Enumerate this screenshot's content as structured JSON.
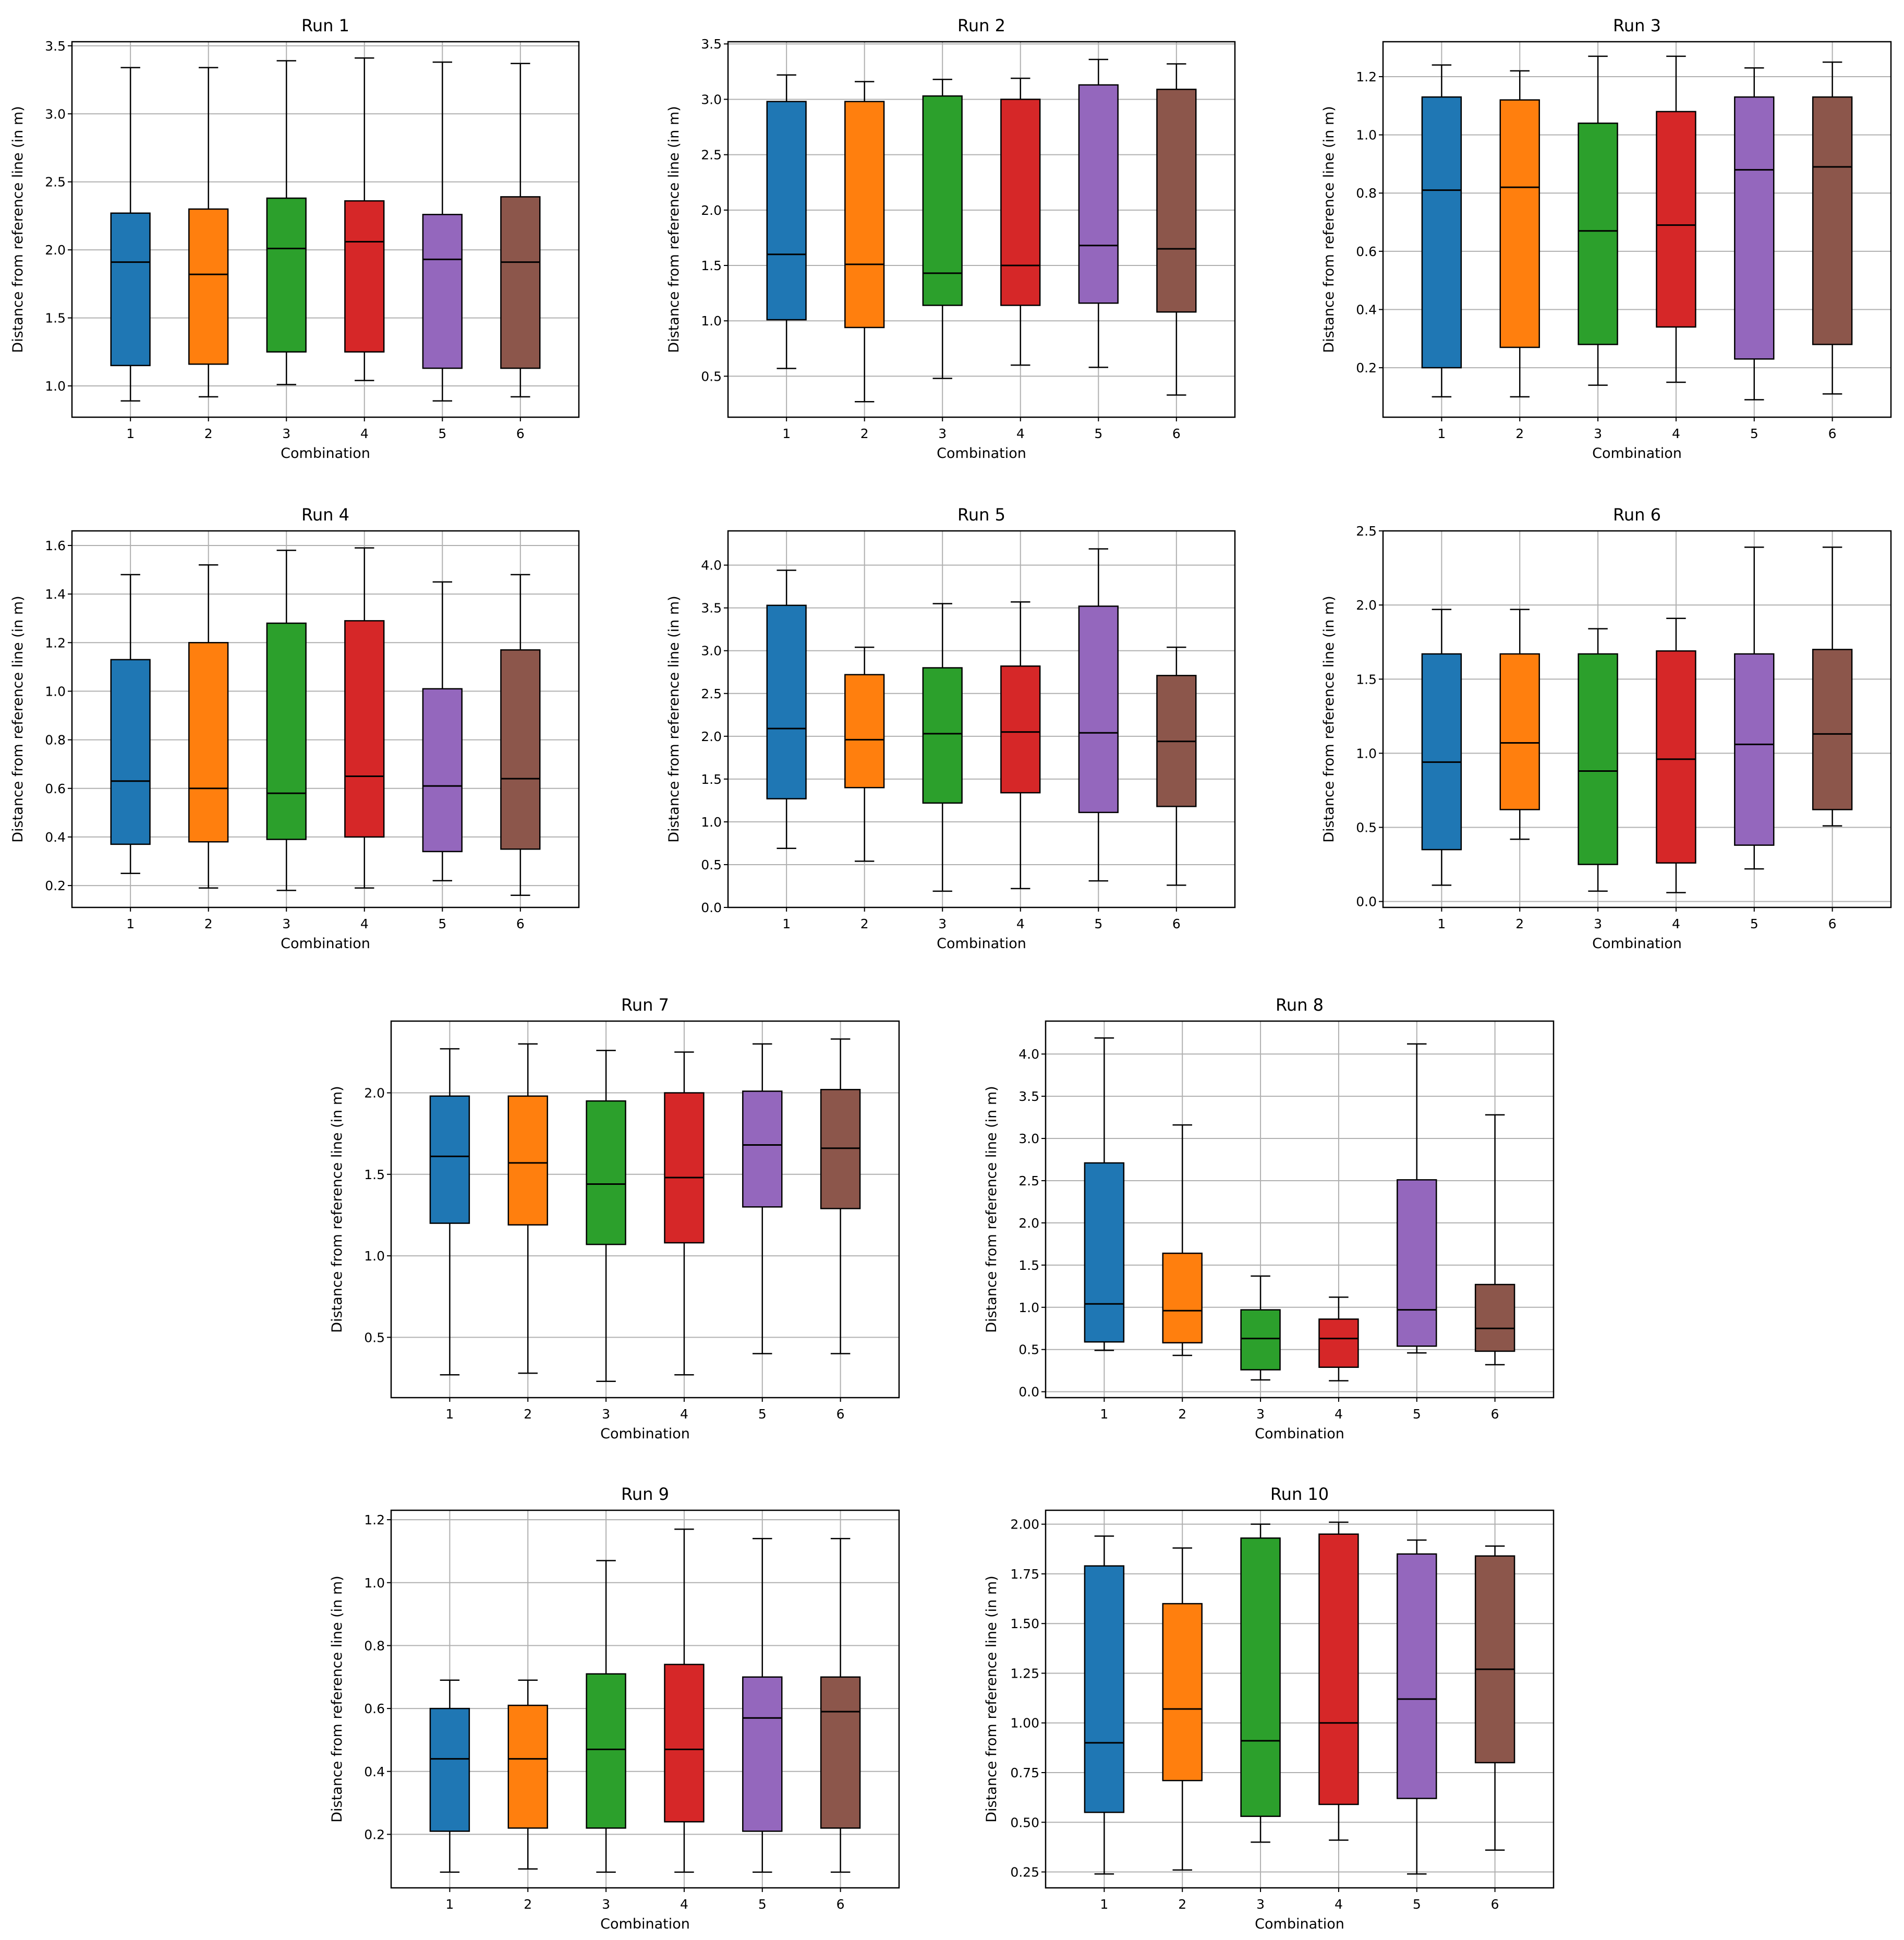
{
  "figure": {
    "xlabel": "Combination",
    "ylabel": "Distance from reference line (in m)",
    "box_colors": [
      "#1f77b4",
      "#ff7f0e",
      "#2ca02c",
      "#d62728",
      "#9467bd",
      "#8c564b"
    ],
    "grid": true
  },
  "chart_data": [
    {
      "type": "boxplot",
      "title": "Run 1",
      "xlabel": "Combination",
      "ylabel": "Distance from reference line (in m)",
      "categories": [
        "1",
        "2",
        "3",
        "4",
        "5",
        "6"
      ],
      "ylim": [
        0.77,
        3.53
      ],
      "yticks": [
        1.0,
        1.5,
        2.0,
        2.5,
        3.0,
        3.5
      ],
      "ytick_labels": [
        "1.0",
        "1.5",
        "2.0",
        "2.5",
        "3.0",
        "3.5"
      ],
      "boxes": [
        {
          "whislo": 0.89,
          "q1": 1.15,
          "med": 1.91,
          "q3": 2.27,
          "whishi": 3.34
        },
        {
          "whislo": 0.92,
          "q1": 1.16,
          "med": 1.82,
          "q3": 2.3,
          "whishi": 3.34
        },
        {
          "whislo": 1.01,
          "q1": 1.25,
          "med": 2.01,
          "q3": 2.38,
          "whishi": 3.39
        },
        {
          "whislo": 1.04,
          "q1": 1.25,
          "med": 2.06,
          "q3": 2.36,
          "whishi": 3.41
        },
        {
          "whislo": 0.89,
          "q1": 1.13,
          "med": 1.93,
          "q3": 2.26,
          "whishi": 3.38
        },
        {
          "whislo": 0.92,
          "q1": 1.13,
          "med": 1.91,
          "q3": 2.39,
          "whishi": 3.37
        }
      ]
    },
    {
      "type": "boxplot",
      "title": "Run 2",
      "xlabel": "Combination",
      "ylabel": "Distance from reference line (in m)",
      "categories": [
        "1",
        "2",
        "3",
        "4",
        "5",
        "6"
      ],
      "ylim": [
        0.13,
        3.52
      ],
      "yticks": [
        0.5,
        1.0,
        1.5,
        2.0,
        2.5,
        3.0,
        3.5
      ],
      "ytick_labels": [
        "0.5",
        "1.0",
        "1.5",
        "2.0",
        "2.5",
        "3.0",
        "3.5"
      ],
      "boxes": [
        {
          "whislo": 0.57,
          "q1": 1.01,
          "med": 1.6,
          "q3": 2.98,
          "whishi": 3.22
        },
        {
          "whislo": 0.27,
          "q1": 0.94,
          "med": 1.51,
          "q3": 2.98,
          "whishi": 3.16
        },
        {
          "whislo": 0.48,
          "q1": 1.14,
          "med": 1.43,
          "q3": 3.03,
          "whishi": 3.18
        },
        {
          "whislo": 0.6,
          "q1": 1.14,
          "med": 1.5,
          "q3": 3.0,
          "whishi": 3.19
        },
        {
          "whislo": 0.58,
          "q1": 1.16,
          "med": 1.68,
          "q3": 3.13,
          "whishi": 3.36
        },
        {
          "whislo": 0.33,
          "q1": 1.08,
          "med": 1.65,
          "q3": 3.09,
          "whishi": 3.32
        }
      ]
    },
    {
      "type": "boxplot",
      "title": "Run 3",
      "xlabel": "Combination",
      "ylabel": "Distance from reference line (in m)",
      "categories": [
        "1",
        "2",
        "3",
        "4",
        "5",
        "6"
      ],
      "ylim": [
        0.03,
        1.32
      ],
      "yticks": [
        0.2,
        0.4,
        0.6,
        0.8,
        1.0,
        1.2
      ],
      "ytick_labels": [
        "0.2",
        "0.4",
        "0.6",
        "0.8",
        "1.0",
        "1.2"
      ],
      "boxes": [
        {
          "whislo": 0.1,
          "q1": 0.2,
          "med": 0.81,
          "q3": 1.13,
          "whishi": 1.24
        },
        {
          "whislo": 0.1,
          "q1": 0.27,
          "med": 0.82,
          "q3": 1.12,
          "whishi": 1.22
        },
        {
          "whislo": 0.14,
          "q1": 0.28,
          "med": 0.67,
          "q3": 1.04,
          "whishi": 1.27
        },
        {
          "whislo": 0.15,
          "q1": 0.34,
          "med": 0.69,
          "q3": 1.08,
          "whishi": 1.27
        },
        {
          "whislo": 0.09,
          "q1": 0.23,
          "med": 0.88,
          "q3": 1.13,
          "whishi": 1.23
        },
        {
          "whislo": 0.11,
          "q1": 0.28,
          "med": 0.89,
          "q3": 1.13,
          "whishi": 1.25
        }
      ]
    },
    {
      "type": "boxplot",
      "title": "Run 4",
      "xlabel": "Combination",
      "ylabel": "Distance from reference line (in m)",
      "categories": [
        "1",
        "2",
        "3",
        "4",
        "5",
        "6"
      ],
      "ylim": [
        0.11,
        1.66
      ],
      "yticks": [
        0.2,
        0.4,
        0.6,
        0.8,
        1.0,
        1.2,
        1.4,
        1.6
      ],
      "ytick_labels": [
        "0.2",
        "0.4",
        "0.6",
        "0.8",
        "1.0",
        "1.2",
        "1.4",
        "1.6"
      ],
      "boxes": [
        {
          "whislo": 0.25,
          "q1": 0.37,
          "med": 0.63,
          "q3": 1.13,
          "whishi": 1.48
        },
        {
          "whislo": 0.19,
          "q1": 0.38,
          "med": 0.6,
          "q3": 1.2,
          "whishi": 1.52
        },
        {
          "whislo": 0.18,
          "q1": 0.39,
          "med": 0.58,
          "q3": 1.28,
          "whishi": 1.58
        },
        {
          "whislo": 0.19,
          "q1": 0.4,
          "med": 0.65,
          "q3": 1.29,
          "whishi": 1.59
        },
        {
          "whislo": 0.22,
          "q1": 0.34,
          "med": 0.61,
          "q3": 1.01,
          "whishi": 1.45
        },
        {
          "whislo": 0.16,
          "q1": 0.35,
          "med": 0.64,
          "q3": 1.17,
          "whishi": 1.48
        }
      ]
    },
    {
      "type": "boxplot",
      "title": "Run 5",
      "xlabel": "Combination",
      "ylabel": "Distance from reference line (in m)",
      "categories": [
        "1",
        "2",
        "3",
        "4",
        "5",
        "6"
      ],
      "ylim": [
        0.0,
        4.4
      ],
      "yticks": [
        0.0,
        0.5,
        1.0,
        1.5,
        2.0,
        2.5,
        3.0,
        3.5,
        4.0
      ],
      "ytick_labels": [
        "0.0",
        "0.5",
        "1.0",
        "1.5",
        "2.0",
        "2.5",
        "3.0",
        "3.5",
        "4.0"
      ],
      "boxes": [
        {
          "whislo": 0.69,
          "q1": 1.27,
          "med": 2.09,
          "q3": 3.53,
          "whishi": 3.94
        },
        {
          "whislo": 0.54,
          "q1": 1.4,
          "med": 1.96,
          "q3": 2.72,
          "whishi": 3.04
        },
        {
          "whislo": 0.19,
          "q1": 1.22,
          "med": 2.03,
          "q3": 2.8,
          "whishi": 3.55
        },
        {
          "whislo": 0.22,
          "q1": 1.34,
          "med": 2.05,
          "q3": 2.82,
          "whishi": 3.57
        },
        {
          "whislo": 0.31,
          "q1": 1.11,
          "med": 2.04,
          "q3": 3.52,
          "whishi": 4.19
        },
        {
          "whislo": 0.26,
          "q1": 1.18,
          "med": 1.94,
          "q3": 2.71,
          "whishi": 3.04
        }
      ]
    },
    {
      "type": "boxplot",
      "title": "Run 6",
      "xlabel": "Combination",
      "ylabel": "Distance from reference line (in m)",
      "categories": [
        "1",
        "2",
        "3",
        "4",
        "5",
        "6"
      ],
      "ylim": [
        -0.04,
        2.5
      ],
      "yticks": [
        0.0,
        0.5,
        1.0,
        1.5,
        2.0,
        2.5
      ],
      "ytick_labels": [
        "0.0",
        "0.5",
        "1.0",
        "1.5",
        "2.0",
        "2.5"
      ],
      "boxes": [
        {
          "whislo": 0.11,
          "q1": 0.35,
          "med": 0.94,
          "q3": 1.67,
          "whishi": 1.97
        },
        {
          "whislo": 0.42,
          "q1": 0.62,
          "med": 1.07,
          "q3": 1.67,
          "whishi": 1.97
        },
        {
          "whislo": 0.07,
          "q1": 0.25,
          "med": 0.88,
          "q3": 1.67,
          "whishi": 1.84
        },
        {
          "whislo": 0.06,
          "q1": 0.26,
          "med": 0.96,
          "q3": 1.69,
          "whishi": 1.91
        },
        {
          "whislo": 0.22,
          "q1": 0.38,
          "med": 1.06,
          "q3": 1.67,
          "whishi": 2.39
        },
        {
          "whislo": 0.51,
          "q1": 0.62,
          "med": 1.13,
          "q3": 1.7,
          "whishi": 2.39
        }
      ]
    },
    {
      "type": "boxplot",
      "title": "Run 7",
      "xlabel": "Combination",
      "ylabel": "Distance from reference line (in m)",
      "categories": [
        "1",
        "2",
        "3",
        "4",
        "5",
        "6"
      ],
      "ylim": [
        0.13,
        2.44
      ],
      "yticks": [
        0.5,
        1.0,
        1.5,
        2.0
      ],
      "ytick_labels": [
        "0.5",
        "1.0",
        "1.5",
        "2.0"
      ],
      "boxes": [
        {
          "whislo": 0.27,
          "q1": 1.2,
          "med": 1.61,
          "q3": 1.98,
          "whishi": 2.27
        },
        {
          "whislo": 0.28,
          "q1": 1.19,
          "med": 1.57,
          "q3": 1.98,
          "whishi": 2.3
        },
        {
          "whislo": 0.23,
          "q1": 1.07,
          "med": 1.44,
          "q3": 1.95,
          "whishi": 2.26
        },
        {
          "whislo": 0.27,
          "q1": 1.08,
          "med": 1.48,
          "q3": 2.0,
          "whishi": 2.25
        },
        {
          "whislo": 0.4,
          "q1": 1.3,
          "med": 1.68,
          "q3": 2.01,
          "whishi": 2.3
        },
        {
          "whislo": 0.4,
          "q1": 1.29,
          "med": 1.66,
          "q3": 2.02,
          "whishi": 2.33
        }
      ]
    },
    {
      "type": "boxplot",
      "title": "Run 8",
      "xlabel": "Combination",
      "ylabel": "Distance from reference line (in m)",
      "categories": [
        "1",
        "2",
        "3",
        "4",
        "5",
        "6"
      ],
      "ylim": [
        -0.07,
        4.39
      ],
      "yticks": [
        0.0,
        0.5,
        1.0,
        1.5,
        2.0,
        2.5,
        3.0,
        3.5,
        4.0
      ],
      "ytick_labels": [
        "0.0",
        "0.5",
        "1.0",
        "1.5",
        "2.0",
        "2.5",
        "3.0",
        "3.5",
        "4.0"
      ],
      "boxes": [
        {
          "whislo": 0.49,
          "q1": 0.59,
          "med": 1.04,
          "q3": 2.71,
          "whishi": 4.19
        },
        {
          "whislo": 0.43,
          "q1": 0.58,
          "med": 0.96,
          "q3": 1.64,
          "whishi": 3.16
        },
        {
          "whislo": 0.14,
          "q1": 0.26,
          "med": 0.63,
          "q3": 0.97,
          "whishi": 1.37
        },
        {
          "whislo": 0.13,
          "q1": 0.29,
          "med": 0.63,
          "q3": 0.86,
          "whishi": 1.12
        },
        {
          "whislo": 0.46,
          "q1": 0.54,
          "med": 0.97,
          "q3": 2.51,
          "whishi": 4.12
        },
        {
          "whislo": 0.32,
          "q1": 0.48,
          "med": 0.75,
          "q3": 1.27,
          "whishi": 3.28
        }
      ]
    },
    {
      "type": "boxplot",
      "title": "Run 9",
      "xlabel": "Combination",
      "ylabel": "Distance from reference line (in m)",
      "categories": [
        "1",
        "2",
        "3",
        "4",
        "5",
        "6"
      ],
      "ylim": [
        0.03,
        1.23
      ],
      "yticks": [
        0.2,
        0.4,
        0.6,
        0.8,
        1.0,
        1.2
      ],
      "ytick_labels": [
        "0.2",
        "0.4",
        "0.6",
        "0.8",
        "1.0",
        "1.2"
      ],
      "boxes": [
        {
          "whislo": 0.08,
          "q1": 0.21,
          "med": 0.44,
          "q3": 0.6,
          "whishi": 0.69
        },
        {
          "whislo": 0.09,
          "q1": 0.22,
          "med": 0.44,
          "q3": 0.61,
          "whishi": 0.69
        },
        {
          "whislo": 0.08,
          "q1": 0.22,
          "med": 0.47,
          "q3": 0.71,
          "whishi": 1.07
        },
        {
          "whislo": 0.08,
          "q1": 0.24,
          "med": 0.47,
          "q3": 0.74,
          "whishi": 1.17
        },
        {
          "whislo": 0.08,
          "q1": 0.21,
          "med": 0.57,
          "q3": 0.7,
          "whishi": 1.14
        },
        {
          "whislo": 0.08,
          "q1": 0.22,
          "med": 0.59,
          "q3": 0.7,
          "whishi": 1.14
        }
      ]
    },
    {
      "type": "boxplot",
      "title": "Run 10",
      "xlabel": "Combination",
      "ylabel": "Distance from reference line (in m)",
      "categories": [
        "1",
        "2",
        "3",
        "4",
        "5",
        "6"
      ],
      "ylim": [
        0.17,
        2.07
      ],
      "yticks": [
        0.25,
        0.5,
        0.75,
        1.0,
        1.25,
        1.5,
        1.75,
        2.0
      ],
      "ytick_labels": [
        "0.25",
        "0.50",
        "0.75",
        "1.00",
        "1.25",
        "1.50",
        "1.75",
        "2.00"
      ],
      "boxes": [
        {
          "whislo": 0.24,
          "q1": 0.55,
          "med": 0.9,
          "q3": 1.79,
          "whishi": 1.94
        },
        {
          "whislo": 0.26,
          "q1": 0.71,
          "med": 1.07,
          "q3": 1.6,
          "whishi": 1.88
        },
        {
          "whislo": 0.4,
          "q1": 0.53,
          "med": 0.91,
          "q3": 1.93,
          "whishi": 2.0
        },
        {
          "whislo": 0.41,
          "q1": 0.59,
          "med": 1.0,
          "q3": 1.95,
          "whishi": 2.01
        },
        {
          "whislo": 0.24,
          "q1": 0.62,
          "med": 1.12,
          "q3": 1.85,
          "whishi": 1.92
        },
        {
          "whislo": 0.36,
          "q1": 0.8,
          "med": 1.27,
          "q3": 1.84,
          "whishi": 1.89
        }
      ]
    }
  ]
}
